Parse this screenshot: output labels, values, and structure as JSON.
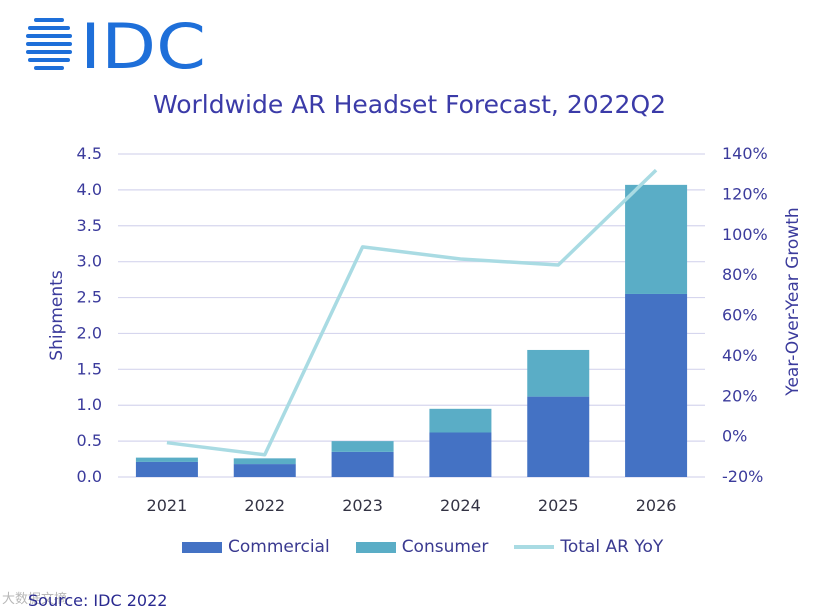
{
  "logo": {
    "text": "IDC",
    "color": "#1e6fd9"
  },
  "title": "Worldwide AR Headset Forecast, 2022Q2",
  "source": "Source: IDC 2022",
  "watermark": "大数据文摘",
  "colors": {
    "commercial": "#4472c4",
    "consumer": "#5aadc6",
    "yoy": "#a9dbe3",
    "axis_text": "#3b3b9c",
    "grid": "#d6d6ee"
  },
  "chart_data": {
    "type": "bar",
    "stacked": true,
    "title": "Worldwide AR Headset Forecast, 2022Q2",
    "categories": [
      "2021",
      "2022",
      "2023",
      "2024",
      "2025",
      "2026"
    ],
    "series": [
      {
        "name": "Commercial",
        "type": "bar",
        "axis": "left",
        "values": [
          0.21,
          0.18,
          0.35,
          0.62,
          1.12,
          2.55
        ]
      },
      {
        "name": "Consumer",
        "type": "bar",
        "axis": "left",
        "values": [
          0.06,
          0.08,
          0.15,
          0.33,
          0.65,
          1.52
        ]
      },
      {
        "name": "Total AR YoY",
        "type": "line",
        "axis": "right",
        "values": [
          -3,
          -9,
          94,
          88,
          85,
          132
        ]
      }
    ],
    "ylabel": "Shipments",
    "ylabel_right": "Year-Over-Year Growth",
    "ylim": [
      0,
      4.5
    ],
    "yticks": [
      "0.0",
      "0.5",
      "1.0",
      "1.5",
      "2.0",
      "2.5",
      "3.0",
      "3.5",
      "4.0",
      "4.5"
    ],
    "ylim_right": [
      -20,
      140
    ],
    "yticks_right": [
      "-20%",
      "0%",
      "20%",
      "40%",
      "60%",
      "80%",
      "100%",
      "120%",
      "140%"
    ],
    "grid": true,
    "legend": "bottom"
  }
}
